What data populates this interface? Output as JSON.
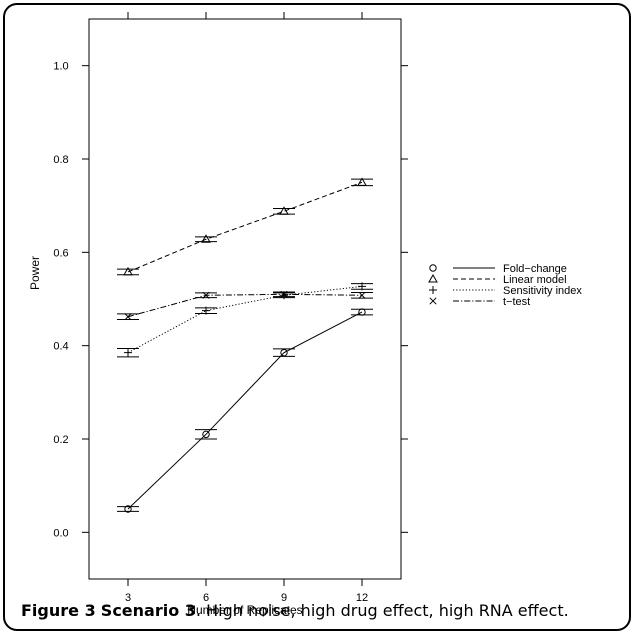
{
  "chart_data": {
    "type": "line",
    "xlabel": "Number of Replicates",
    "ylabel": "Power",
    "x": [
      3,
      6,
      9,
      12
    ],
    "xticks": [
      "3",
      "6",
      "9",
      "12"
    ],
    "yticks": [
      "0.0",
      "0.2",
      "0.4",
      "0.6",
      "0.8",
      "1.0"
    ],
    "ylim": [
      -0.1,
      1.1
    ],
    "xlim": [
      1.5,
      13.5
    ],
    "legend_position": "right",
    "series": [
      {
        "name": "Fold−change",
        "marker": "circle",
        "line": "solid",
        "values": [
          0.05,
          0.21,
          0.385,
          0.472
        ],
        "err": [
          0.005,
          0.01,
          0.008,
          0.006
        ]
      },
      {
        "name": "Linear model",
        "marker": "triangle",
        "line": "dashed",
        "values": [
          0.558,
          0.628,
          0.688,
          0.75
        ],
        "err": [
          0.006,
          0.005,
          0.006,
          0.007
        ]
      },
      {
        "name": "Sensitivity index",
        "marker": "plus",
        "line": "dotted",
        "values": [
          0.385,
          0.475,
          0.508,
          0.527
        ],
        "err": [
          0.009,
          0.006,
          0.005,
          0.006
        ]
      },
      {
        "name": "t−test",
        "marker": "cross",
        "line": "dashdot",
        "values": [
          0.462,
          0.508,
          0.51,
          0.508
        ],
        "err": [
          0.006,
          0.005,
          0.005,
          0.006
        ]
      }
    ]
  },
  "caption": {
    "label": "Figure 3",
    "title": "Scenario 3",
    "text": ". High noise, high drug effect, high RNA effect."
  }
}
